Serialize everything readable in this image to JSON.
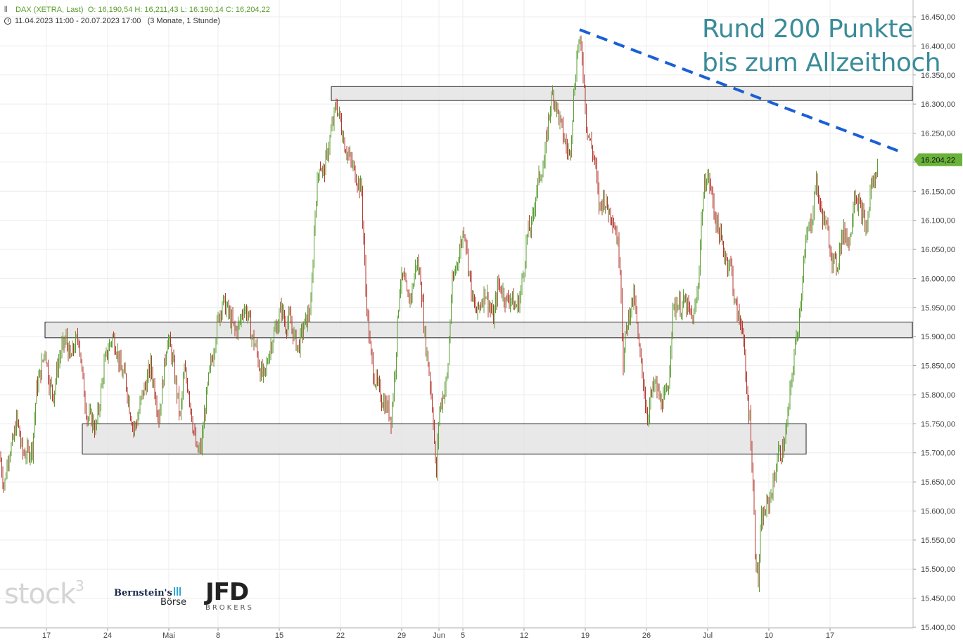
{
  "header": {
    "instrument": "DAX (XETRA, Last)",
    "ohlc": "O: 16,190,54  H: 16,211,43  L: 16.190,14  C: 16,204,22",
    "range": "11.04.2023 11:00 - 20.07.2023 17:00",
    "period": "(3 Monate, 1 Stunde)"
  },
  "annotation": {
    "line1": "Rund 200 Punkte",
    "line2": "bis zum Allzeithoch"
  },
  "logos": {
    "stock3": "stock",
    "stock3_sup": "3",
    "bernstein": "Bernstein's",
    "boerse": "Börse",
    "jfd": "JFD",
    "jfd_sub": "BROKERS"
  },
  "colors": {
    "up": "#5a9e32",
    "down": "#b5372e",
    "trendline": "#1a5fd6",
    "zone_fill": "#e4e4e4",
    "zone_stroke": "#222222",
    "price_badge": "#6ab23a",
    "annotation": "#3a8c9a",
    "grid": "#ececec"
  },
  "chart_data": {
    "type": "candlestick",
    "instrument": "DAX (XETRA, Last)",
    "timeframe": "1 Stunde",
    "grid": true,
    "y_axis": {
      "min": 15400,
      "max": 16450,
      "step": 50,
      "side": "right",
      "tick_labels": [
        "16.450,00",
        "16.400,00",
        "16.350,00",
        "16.300,00",
        "16.250,00",
        "16.200,00",
        "16.150,00",
        "16.100,00",
        "16.050,00",
        "16.000,00",
        "15.950,00",
        "15.900,00",
        "15.850,00",
        "15.800,00",
        "15.750,00",
        "15.700,00",
        "15.650,00",
        "15.600,00",
        "15.550,00",
        "15.500,00",
        "15.450,00",
        "15.400,00"
      ]
    },
    "x_axis": {
      "tick_labels": [
        "17",
        "24",
        "Mai",
        "8",
        "15",
        "22",
        "29",
        "Jun",
        "5",
        "12",
        "19",
        "26",
        "Jul",
        "10",
        "17"
      ]
    },
    "last_price": {
      "value": 16204.22,
      "label": "16.204,22"
    },
    "zones": [
      {
        "name": "resistance",
        "low": 16306,
        "high": 16330
      },
      {
        "name": "middle",
        "low": 15898,
        "high": 15925
      },
      {
        "name": "support",
        "low": 15698,
        "high": 15750
      }
    ],
    "trendline": {
      "start_price": 16428,
      "end_price": 16218,
      "style": "dashed"
    },
    "close_path": [
      [
        0,
        15695
      ],
      [
        6,
        15640
      ],
      [
        12,
        15700
      ],
      [
        18,
        15715
      ],
      [
        24,
        15760
      ],
      [
        32,
        15700
      ],
      [
        40,
        15700
      ],
      [
        46,
        15710
      ],
      [
        52,
        15810
      ],
      [
        58,
        15840
      ],
      [
        64,
        15880
      ],
      [
        70,
        15820
      ],
      [
        76,
        15800
      ],
      [
        82,
        15850
      ],
      [
        88,
        15880
      ],
      [
        94,
        15895
      ],
      [
        100,
        15860
      ],
      [
        106,
        15885
      ],
      [
        112,
        15900
      ],
      [
        118,
        15820
      ],
      [
        124,
        15760
      ],
      [
        130,
        15760
      ],
      [
        136,
        15740
      ],
      [
        142,
        15790
      ],
      [
        148,
        15850
      ],
      [
        154,
        15880
      ],
      [
        160,
        15900
      ],
      [
        166,
        15880
      ],
      [
        172,
        15840
      ],
      [
        178,
        15830
      ],
      [
        184,
        15780
      ],
      [
        190,
        15740
      ],
      [
        196,
        15760
      ],
      [
        202,
        15800
      ],
      [
        208,
        15820
      ],
      [
        214,
        15850
      ],
      [
        220,
        15810
      ],
      [
        226,
        15760
      ],
      [
        232,
        15830
      ],
      [
        238,
        15900
      ],
      [
        244,
        15870
      ],
      [
        250,
        15820
      ],
      [
        256,
        15760
      ],
      [
        262,
        15840
      ],
      [
        268,
        15810
      ],
      [
        274,
        15750
      ],
      [
        280,
        15700
      ],
      [
        286,
        15710
      ],
      [
        292,
        15780
      ],
      [
        298,
        15840
      ],
      [
        304,
        15880
      ],
      [
        310,
        15930
      ],
      [
        316,
        15960
      ],
      [
        322,
        15950
      ],
      [
        328,
        15930
      ],
      [
        334,
        15910
      ],
      [
        340,
        15920
      ],
      [
        346,
        15950
      ],
      [
        352,
        15940
      ],
      [
        358,
        15900
      ],
      [
        364,
        15880
      ],
      [
        370,
        15840
      ],
      [
        376,
        15830
      ],
      [
        382,
        15870
      ],
      [
        388,
        15900
      ],
      [
        394,
        15920
      ],
      [
        400,
        15950
      ],
      [
        406,
        15920
      ],
      [
        412,
        15930
      ],
      [
        418,
        15900
      ],
      [
        424,
        15880
      ],
      [
        430,
        15910
      ],
      [
        436,
        15930
      ],
      [
        442,
        15950
      ],
      [
        448,
        16120
      ],
      [
        454,
        16200
      ],
      [
        460,
        16180
      ],
      [
        466,
        16220
      ],
      [
        472,
        16260
      ],
      [
        478,
        16300
      ],
      [
        484,
        16270
      ],
      [
        490,
        16230
      ],
      [
        496,
        16210
      ],
      [
        502,
        16190
      ],
      [
        508,
        16170
      ],
      [
        514,
        16150
      ],
      [
        520,
        15980
      ],
      [
        526,
        15880
      ],
      [
        532,
        15830
      ],
      [
        538,
        15810
      ],
      [
        544,
        15790
      ],
      [
        550,
        15780
      ],
      [
        556,
        15760
      ],
      [
        562,
        15850
      ],
      [
        568,
        15990
      ],
      [
        574,
        16000
      ],
      [
        580,
        15960
      ],
      [
        586,
        15980
      ],
      [
        592,
        16030
      ],
      [
        598,
        16000
      ],
      [
        604,
        15900
      ],
      [
        610,
        15840
      ],
      [
        616,
        15760
      ],
      [
        620,
        15650
      ],
      [
        624,
        15770
      ],
      [
        630,
        15800
      ],
      [
        636,
        15830
      ],
      [
        642,
        15980
      ],
      [
        648,
        16020
      ],
      [
        654,
        16050
      ],
      [
        660,
        16090
      ],
      [
        666,
        16020
      ],
      [
        672,
        15960
      ],
      [
        678,
        15940
      ],
      [
        684,
        15960
      ],
      [
        690,
        15980
      ],
      [
        696,
        15950
      ],
      [
        702,
        15930
      ],
      [
        708,
        15990
      ],
      [
        714,
        15980
      ],
      [
        720,
        15960
      ],
      [
        726,
        15970
      ],
      [
        732,
        15950
      ],
      [
        738,
        15960
      ],
      [
        744,
        16010
      ],
      [
        750,
        16080
      ],
      [
        756,
        16090
      ],
      [
        762,
        16150
      ],
      [
        768,
        16180
      ],
      [
        774,
        16200
      ],
      [
        780,
        16280
      ],
      [
        786,
        16320
      ],
      [
        792,
        16290
      ],
      [
        798,
        16260
      ],
      [
        804,
        16230
      ],
      [
        810,
        16210
      ],
      [
        816,
        16320
      ],
      [
        822,
        16410
      ],
      [
        828,
        16380
      ],
      [
        834,
        16260
      ],
      [
        840,
        16230
      ],
      [
        846,
        16200
      ],
      [
        852,
        16120
      ],
      [
        858,
        16140
      ],
      [
        864,
        16120
      ],
      [
        870,
        16110
      ],
      [
        876,
        16080
      ],
      [
        882,
        16020
      ],
      [
        886,
        15850
      ],
      [
        890,
        15910
      ],
      [
        896,
        15950
      ],
      [
        902,
        15970
      ],
      [
        908,
        15880
      ],
      [
        914,
        15830
      ],
      [
        920,
        15760
      ],
      [
        926,
        15800
      ],
      [
        932,
        15820
      ],
      [
        938,
        15790
      ],
      [
        944,
        15790
      ],
      [
        950,
        15810
      ],
      [
        956,
        15940
      ],
      [
        962,
        15960
      ],
      [
        968,
        15950
      ],
      [
        974,
        15960
      ],
      [
        980,
        15940
      ],
      [
        986,
        15930
      ],
      [
        992,
        15980
      ],
      [
        998,
        16120
      ],
      [
        1004,
        16180
      ],
      [
        1010,
        16160
      ],
      [
        1016,
        16110
      ],
      [
        1022,
        16080
      ],
      [
        1028,
        16050
      ],
      [
        1034,
        16030
      ],
      [
        1040,
        16020
      ],
      [
        1044,
        15960
      ],
      [
        1050,
        15930
      ],
      [
        1056,
        15920
      ],
      [
        1060,
        15820
      ],
      [
        1066,
        15760
      ],
      [
        1070,
        15660
      ],
      [
        1074,
        15520
      ],
      [
        1078,
        15480
      ],
      [
        1082,
        15580
      ],
      [
        1088,
        15600
      ],
      [
        1094,
        15620
      ],
      [
        1100,
        15650
      ],
      [
        1106,
        15700
      ],
      [
        1112,
        15700
      ],
      [
        1118,
        15740
      ],
      [
        1124,
        15810
      ],
      [
        1130,
        15880
      ],
      [
        1136,
        15930
      ],
      [
        1142,
        16020
      ],
      [
        1148,
        16080
      ],
      [
        1154,
        16100
      ],
      [
        1160,
        16170
      ],
      [
        1166,
        16120
      ],
      [
        1172,
        16100
      ],
      [
        1178,
        16070
      ],
      [
        1184,
        16030
      ],
      [
        1190,
        16020
      ],
      [
        1196,
        16070
      ],
      [
        1202,
        16080
      ],
      [
        1208,
        16060
      ],
      [
        1214,
        16150
      ],
      [
        1220,
        16130
      ],
      [
        1226,
        16110
      ],
      [
        1232,
        16080
      ],
      [
        1238,
        16160
      ],
      [
        1244,
        16170
      ],
      [
        1248,
        16204
      ]
    ]
  }
}
